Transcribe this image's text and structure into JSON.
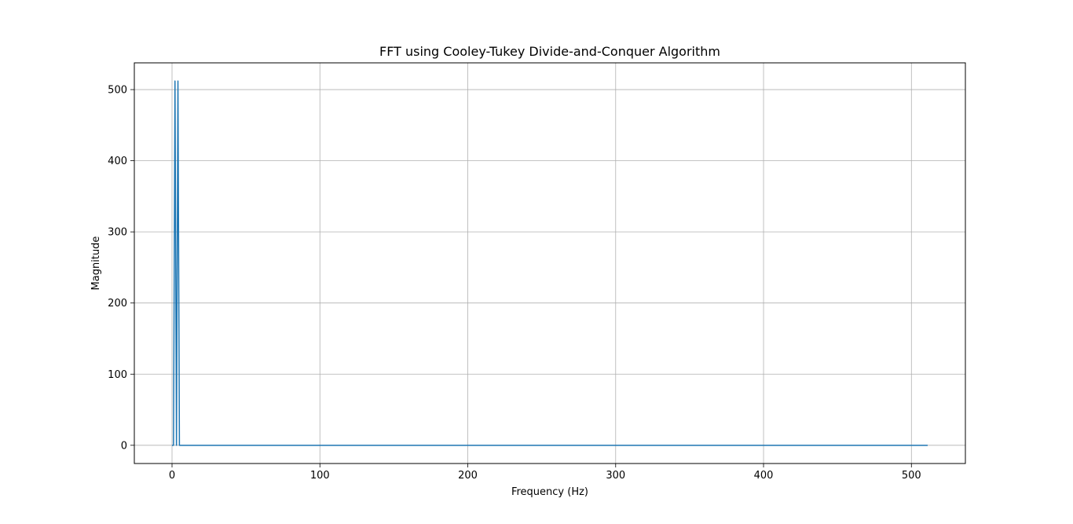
{
  "chart_data": {
    "type": "line",
    "title": "FFT using Cooley-Tukey Divide-and-Conquer Algorithm",
    "xlabel": "Frequency (Hz)",
    "ylabel": "Magnitude",
    "xlim": [
      -25.5,
      536.5
    ],
    "ylim": [
      -25.6,
      537.6
    ],
    "xticks": [
      0,
      100,
      200,
      300,
      400,
      500
    ],
    "yticks": [
      0,
      100,
      200,
      300,
      400,
      500
    ],
    "grid": true,
    "line_color": "#1f77b4",
    "series": [
      {
        "x": [
          0,
          1,
          2,
          3,
          4,
          5,
          6,
          511
        ],
        "y": [
          0,
          0,
          512,
          0,
          512,
          0,
          0,
          0
        ]
      }
    ]
  }
}
